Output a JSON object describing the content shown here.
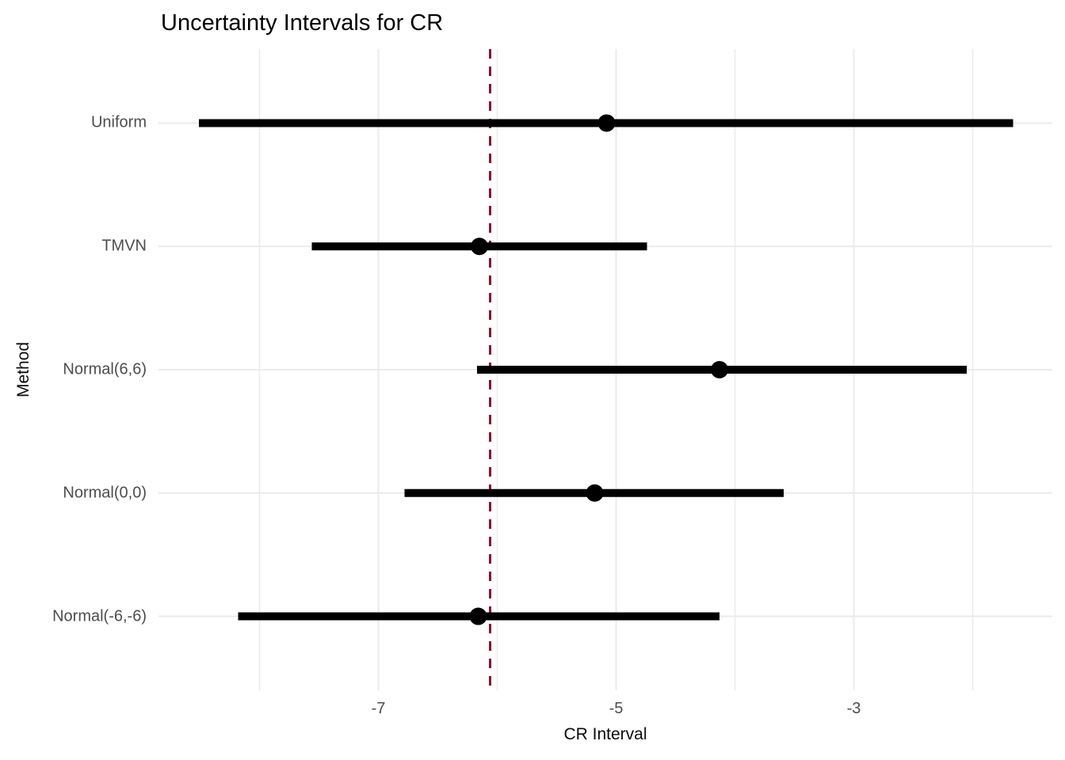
{
  "title": "Uncertainty Intervals for CR",
  "axes": {
    "x_title": "CR Interval",
    "y_title": "Method"
  },
  "colors": {
    "background": "#FFFFFF",
    "grid": "#EBEBEB",
    "interval_bar": "#000000",
    "point_estimate": "#000000",
    "reference_line": "#8B102C",
    "title_text": "#000000",
    "axis_title_text": "#0A0A0A",
    "tick_label_text": "#4D4D4D"
  },
  "chart_data": {
    "type": "scatter",
    "subtype": "horizontal-uncertainty-intervals",
    "title": "Uncertainty Intervals for CR",
    "xlabel": "CR Interval",
    "ylabel": "Method",
    "categories": [
      "Uniform",
      "TMVN",
      "Normal(6,6)",
      "Normal(0,0)",
      "Normal(-6,-6)"
    ],
    "series": [
      {
        "method": "Uniform",
        "estimate": -5.08,
        "lower": -8.51,
        "upper": -1.66
      },
      {
        "method": "TMVN",
        "estimate": -6.15,
        "lower": -7.56,
        "upper": -4.74
      },
      {
        "method": "Normal(6,6)",
        "estimate": -4.13,
        "lower": -6.17,
        "upper": -2.05
      },
      {
        "method": "Normal(0,0)",
        "estimate": -5.18,
        "lower": -6.78,
        "upper": -3.59
      },
      {
        "method": "Normal(-6,-6)",
        "estimate": -6.16,
        "lower": -8.18,
        "upper": -4.13
      }
    ],
    "reference_line": {
      "x": -6.06,
      "style": "dashed",
      "color": "#8B102C"
    },
    "x_ticks": [
      -7,
      -5,
      -3
    ],
    "x_tick_labels": [
      "-7",
      "-5",
      "-3"
    ],
    "x_minor_gridlines": [
      -8,
      -6,
      -4,
      -2
    ],
    "xlim": [
      -8.85,
      -1.33
    ],
    "grid": true,
    "legend": false,
    "interval_thickness_px": 10,
    "point_radius_px": 11
  }
}
